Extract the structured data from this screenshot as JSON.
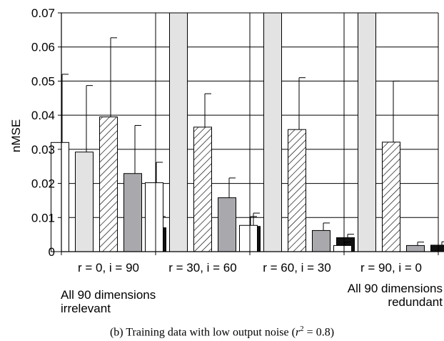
{
  "chart_data": {
    "type": "bar",
    "ylabel": "nMSE",
    "ylim": [
      0,
      0.07
    ],
    "yticks": [
      "0",
      "0.01",
      "0.02",
      "0.03",
      "0.04",
      "0.05",
      "0.06",
      "0.07"
    ],
    "grid": "horizontal",
    "categories": [
      "r = 0, i = 90",
      "r = 30, i = 60",
      "r = 60, i = 30",
      "r = 90, i = 0"
    ],
    "series": [
      {
        "style": "white",
        "fill": "#ffffff",
        "values": [
          0.032,
          0.0202,
          0.0077,
          0.0018
        ],
        "errors": [
          0.02,
          0.006,
          0.0026,
          0.001
        ]
      },
      {
        "style": "light-gray",
        "fill": "#e3e3e3",
        "values": [
          0.0292,
          0.07,
          0.07,
          0.07
        ],
        "errors": [
          0.0195,
          null,
          null,
          null
        ]
      },
      {
        "style": "hatched",
        "fill": "#ffffff",
        "values": [
          0.0395,
          0.0365,
          0.0358,
          0.0321
        ],
        "errors": [
          0.0232,
          0.0098,
          0.0152,
          0.0179
        ]
      },
      {
        "style": "gray",
        "fill": "#a9a9ad",
        "values": [
          0.0229,
          0.0158,
          0.0062,
          0.0018
        ],
        "errors": [
          0.0141,
          0.0058,
          0.0022,
          0.001
        ]
      },
      {
        "style": "black",
        "fill": "#111111",
        "values": [
          0.007,
          0.0074,
          0.0041,
          0.0019
        ],
        "errors": [
          0.0033,
          0.0039,
          0.001,
          0.001
        ]
      }
    ],
    "annotations": {
      "left": [
        "All 90 dimensions",
        "irrelevant"
      ],
      "right": [
        "All 90 dimensions",
        "redundant"
      ]
    }
  },
  "caption": {
    "prefix": "(b) Training data with low output noise (",
    "r": "r",
    "sup": "2",
    "suffix": " = 0.8)"
  }
}
